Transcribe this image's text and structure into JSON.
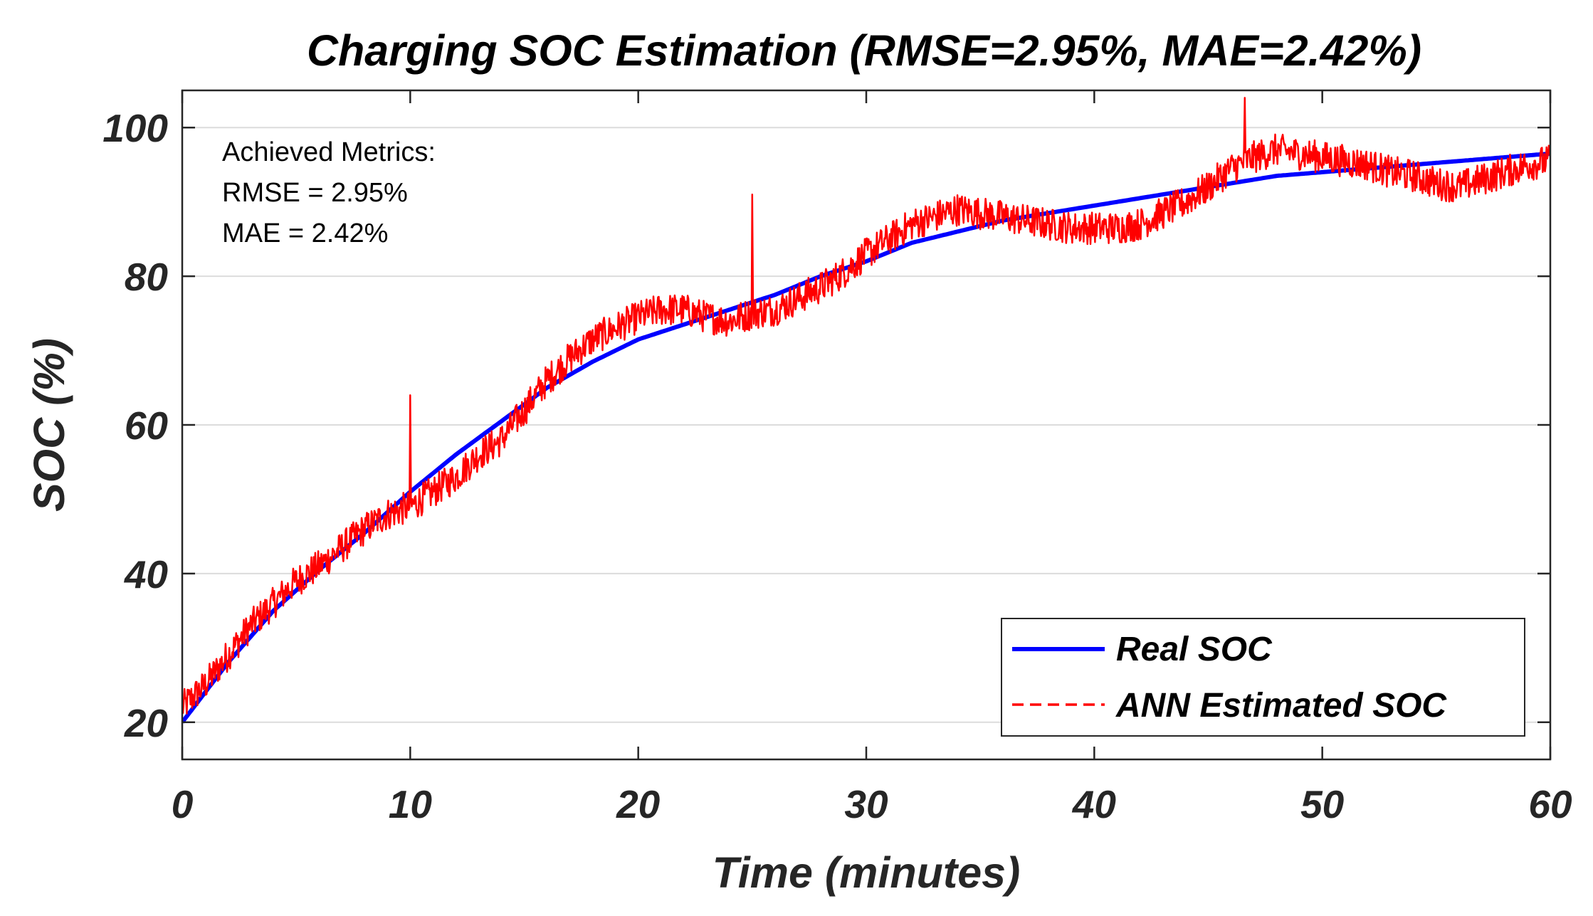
{
  "colors": {
    "real": "#0000ff",
    "estimated": "#ff0000",
    "axis": "#262626",
    "grid": "#dcdcdc"
  },
  "chart_data": {
    "type": "line",
    "title": "Charging SOC Estimation (RMSE=2.95%, MAE=2.42%)",
    "xlabel": "Time (minutes)",
    "ylabel": "SOC (%)",
    "xlim": [
      0,
      60
    ],
    "ylim": [
      15,
      105
    ],
    "xticks": [
      0,
      10,
      20,
      30,
      40,
      50,
      60
    ],
    "yticks": [
      20,
      40,
      60,
      80,
      100
    ],
    "grid": "horizontal",
    "legend_position": "bottom-right",
    "annotation": [
      "Achieved Metrics:",
      "RMSE = 2.95%",
      "MAE = 2.42%"
    ],
    "series": [
      {
        "name": "Real SOC",
        "style": "solid",
        "x": [
          0,
          2,
          4,
          6,
          8,
          10,
          12,
          14,
          16,
          18,
          20,
          22,
          24,
          26,
          28,
          30,
          32,
          34,
          36,
          38,
          40,
          42,
          44,
          46,
          48,
          50,
          52,
          54,
          56,
          58,
          60
        ],
        "y": [
          20,
          28,
          35,
          40.5,
          45.5,
          51,
          56,
          60.5,
          65,
          68.5,
          71.5,
          73.5,
          75.5,
          77.5,
          80,
          82,
          84.5,
          86,
          87.5,
          88.5,
          89.5,
          90.5,
          91.5,
          92.5,
          93.5,
          94,
          94.5,
          95,
          95.5,
          96,
          96.5
        ]
      },
      {
        "name": "ANN Estimated SOC",
        "style": "dashed",
        "x": [
          0,
          1,
          2,
          3,
          4,
          5,
          6,
          7,
          8,
          9,
          10,
          11,
          12,
          13,
          14,
          15,
          16,
          17,
          18,
          19,
          20,
          21,
          22,
          23,
          24,
          25,
          26,
          27,
          28,
          29,
          30,
          31,
          32,
          33,
          34,
          35,
          36,
          37,
          38,
          39,
          40,
          41,
          42,
          43,
          44,
          45,
          46,
          47,
          48,
          49,
          50,
          51,
          52,
          53,
          54,
          55,
          56,
          57,
          58,
          59,
          60
        ],
        "y": [
          22,
          25,
          29,
          33,
          36,
          39,
          41,
          43.5,
          46,
          48,
          49,
          51,
          53,
          56,
          58,
          62,
          66,
          69,
          71.5,
          73,
          74.5,
          75.5,
          75.5,
          74.5,
          74,
          75,
          75.5,
          77,
          78.5,
          80.5,
          83,
          85,
          87,
          88,
          89,
          88.5,
          88,
          87.5,
          87,
          86.5,
          86.5,
          86.5,
          87,
          88.5,
          90,
          92,
          94.5,
          96,
          97,
          96.5,
          96,
          95.5,
          95,
          94,
          93.5,
          92.5,
          92,
          93,
          94,
          95,
          95.5
        ],
        "noise_amplitude": 2.2,
        "spikes": [
          [
            10,
            64
          ],
          [
            25,
            91
          ],
          [
            46.6,
            104
          ]
        ]
      }
    ]
  }
}
